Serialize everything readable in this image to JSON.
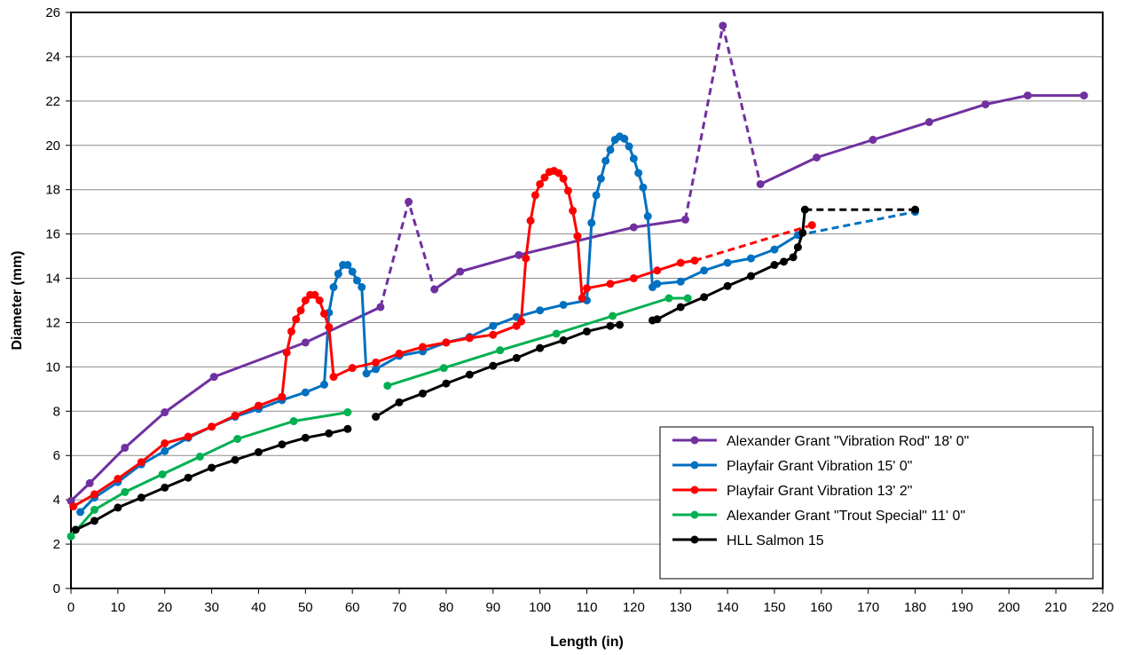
{
  "chart_data": {
    "type": "line",
    "title": "",
    "xlabel": "Length (in)",
    "ylabel": "Diameter (mm)",
    "xlim": [
      0,
      220
    ],
    "ylim": [
      0,
      26
    ],
    "xticks": [
      0,
      10,
      20,
      30,
      40,
      50,
      60,
      70,
      80,
      90,
      100,
      110,
      120,
      130,
      140,
      150,
      160,
      170,
      180,
      190,
      200,
      210,
      220
    ],
    "yticks": [
      0,
      2,
      4,
      6,
      8,
      10,
      12,
      14,
      16,
      18,
      20,
      22,
      24,
      26
    ],
    "grid": "horizontal",
    "legend_position": "bottom-right",
    "series": [
      {
        "name": "Alexander Grant \"Vibration Rod\" 18' 0\"",
        "color": "#7030a0",
        "segments": [
          {
            "style": "solid",
            "points": [
              [
                0,
                3.95
              ],
              [
                4,
                4.75
              ],
              [
                11.5,
                6.35
              ],
              [
                20,
                7.95
              ],
              [
                30.5,
                9.55
              ],
              [
                50,
                11.1
              ],
              [
                66,
                12.7
              ]
            ]
          },
          {
            "style": "dashed",
            "points": [
              [
                66,
                12.7
              ],
              [
                72,
                17.45
              ],
              [
                77.5,
                13.5
              ]
            ]
          },
          {
            "style": "solid",
            "points": [
              [
                77.5,
                13.5
              ],
              [
                83,
                14.3
              ],
              [
                95.5,
                15.05
              ],
              [
                120,
                16.3
              ],
              [
                131,
                16.65
              ]
            ]
          },
          {
            "style": "dashed",
            "points": [
              [
                131,
                16.65
              ],
              [
                139,
                25.4
              ],
              [
                147,
                18.25
              ]
            ]
          },
          {
            "style": "solid",
            "points": [
              [
                147,
                18.25
              ],
              [
                159,
                19.45
              ],
              [
                171,
                20.25
              ],
              [
                183,
                21.05
              ],
              [
                195,
                21.85
              ],
              [
                204,
                22.25
              ],
              [
                216,
                22.25
              ]
            ]
          }
        ]
      },
      {
        "name": "Playfair  Grant Vibration 15' 0\"",
        "color": "#0070c0",
        "segments": [
          {
            "style": "solid",
            "points": [
              [
                2,
                3.45
              ],
              [
                5,
                4.1
              ],
              [
                10,
                4.8
              ],
              [
                15,
                5.6
              ],
              [
                20,
                6.2
              ],
              [
                25,
                6.8
              ],
              [
                30,
                7.3
              ],
              [
                35,
                7.75
              ],
              [
                40,
                8.1
              ],
              [
                45,
                8.5
              ],
              [
                50,
                8.85
              ],
              [
                54,
                9.2
              ],
              [
                55,
                12.45
              ],
              [
                56,
                13.6
              ],
              [
                57,
                14.2
              ],
              [
                58,
                14.6
              ],
              [
                59,
                14.6
              ],
              [
                60,
                14.3
              ],
              [
                61,
                13.9
              ],
              [
                62,
                13.6
              ],
              [
                63,
                9.7
              ],
              [
                65,
                9.9
              ],
              [
                70,
                10.5
              ],
              [
                75,
                10.7
              ],
              [
                80,
                11.1
              ],
              [
                85,
                11.35
              ],
              [
                90,
                11.85
              ],
              [
                95,
                12.25
              ],
              [
                100,
                12.55
              ],
              [
                105,
                12.8
              ],
              [
                110,
                13.0
              ],
              [
                111,
                16.5
              ],
              [
                112,
                17.75
              ],
              [
                113,
                18.5
              ],
              [
                114,
                19.3
              ],
              [
                115,
                19.8
              ],
              [
                116,
                20.25
              ],
              [
                117,
                20.4
              ],
              [
                118,
                20.3
              ],
              [
                119,
                19.95
              ],
              [
                120,
                19.4
              ],
              [
                121,
                18.75
              ],
              [
                122,
                18.1
              ],
              [
                123,
                16.8
              ],
              [
                124,
                13.6
              ],
              [
                125,
                13.75
              ],
              [
                130,
                13.85
              ],
              [
                135,
                14.35
              ],
              [
                140,
                14.7
              ],
              [
                145,
                14.9
              ],
              [
                150,
                15.3
              ],
              [
                155,
                15.95
              ]
            ]
          },
          {
            "style": "dashed",
            "points": [
              [
                155,
                15.95
              ],
              [
                180,
                17.0
              ]
            ]
          }
        ]
      },
      {
        "name": "Playfair  Grant Vibration 13' 2\"",
        "color": "#ff0000",
        "segments": [
          {
            "style": "solid",
            "points": [
              [
                0.5,
                3.7
              ],
              [
                5,
                4.25
              ],
              [
                10,
                4.95
              ],
              [
                15,
                5.7
              ],
              [
                20,
                6.55
              ],
              [
                25,
                6.85
              ],
              [
                30,
                7.3
              ],
              [
                35,
                7.8
              ],
              [
                40,
                8.25
              ],
              [
                45,
                8.65
              ],
              [
                46,
                10.65
              ],
              [
                47,
                11.6
              ],
              [
                48,
                12.15
              ],
              [
                49,
                12.55
              ],
              [
                50,
                13.0
              ],
              [
                51,
                13.25
              ],
              [
                52,
                13.25
              ],
              [
                53,
                13.0
              ],
              [
                54,
                12.4
              ],
              [
                55,
                11.8
              ],
              [
                56,
                9.55
              ],
              [
                60,
                9.95
              ],
              [
                65,
                10.2
              ],
              [
                70,
                10.6
              ],
              [
                75,
                10.9
              ],
              [
                80,
                11.1
              ],
              [
                85,
                11.3
              ],
              [
                90,
                11.45
              ],
              [
                95,
                11.85
              ],
              [
                96,
                12.05
              ],
              [
                97,
                14.9
              ],
              [
                98,
                16.6
              ],
              [
                99,
                17.75
              ],
              [
                100,
                18.25
              ],
              [
                101,
                18.55
              ],
              [
                102,
                18.8
              ],
              [
                103,
                18.85
              ],
              [
                104,
                18.75
              ],
              [
                105,
                18.5
              ],
              [
                106,
                17.95
              ],
              [
                107,
                17.05
              ],
              [
                108,
                15.9
              ],
              [
                109,
                13.1
              ],
              [
                110,
                13.55
              ],
              [
                115,
                13.75
              ],
              [
                120,
                14.0
              ],
              [
                125,
                14.35
              ],
              [
                130,
                14.7
              ],
              [
                133,
                14.8
              ]
            ]
          },
          {
            "style": "dashed",
            "points": [
              [
                133,
                14.8
              ],
              [
                158,
                16.4
              ]
            ]
          }
        ]
      },
      {
        "name": "Alexander Grant \"Trout Special\" 11' 0\"",
        "color": "#00b050",
        "segments": [
          {
            "style": "solid",
            "points": [
              [
                0,
                2.35
              ],
              [
                5,
                3.55
              ],
              [
                11.5,
                4.35
              ],
              [
                19.5,
                5.15
              ],
              [
                27.5,
                5.95
              ],
              [
                35.5,
                6.75
              ],
              [
                47.5,
                7.55
              ],
              [
                59,
                7.95
              ]
            ]
          },
          {
            "style": "solid",
            "points": [
              [
                67.5,
                9.15
              ],
              [
                79.5,
                9.95
              ],
              [
                91.5,
                10.75
              ],
              [
                103.5,
                11.5
              ],
              [
                115.5,
                12.3
              ],
              [
                127.5,
                13.1
              ],
              [
                131.5,
                13.1
              ]
            ]
          }
        ]
      },
      {
        "name": "HLL Salmon 15",
        "color": "#000000",
        "segments": [
          {
            "style": "solid",
            "points": [
              [
                1,
                2.65
              ],
              [
                5,
                3.05
              ],
              [
                10,
                3.65
              ],
              [
                15,
                4.1
              ],
              [
                20,
                4.55
              ],
              [
                25,
                5.0
              ],
              [
                30,
                5.45
              ],
              [
                35,
                5.8
              ],
              [
                40,
                6.15
              ],
              [
                45,
                6.5
              ],
              [
                50,
                6.8
              ],
              [
                55,
                7.0
              ],
              [
                59,
                7.2
              ]
            ]
          },
          {
            "style": "solid",
            "points": [
              [
                65,
                7.75
              ],
              [
                70,
                8.4
              ],
              [
                75,
                8.8
              ],
              [
                80,
                9.25
              ],
              [
                85,
                9.65
              ],
              [
                90,
                10.05
              ],
              [
                95,
                10.4
              ],
              [
                100,
                10.85
              ],
              [
                105,
                11.2
              ],
              [
                110,
                11.6
              ],
              [
                115,
                11.85
              ],
              [
                117,
                11.9
              ]
            ]
          },
          {
            "style": "solid",
            "points": [
              [
                124,
                12.1
              ],
              [
                125,
                12.15
              ],
              [
                130,
                12.7
              ],
              [
                135,
                13.15
              ],
              [
                140,
                13.65
              ],
              [
                145,
                14.1
              ],
              [
                150,
                14.6
              ],
              [
                152,
                14.75
              ],
              [
                154,
                14.95
              ],
              [
                155,
                15.4
              ],
              [
                156,
                16.05
              ],
              [
                156.5,
                17.1
              ]
            ]
          },
          {
            "style": "dashed",
            "points": [
              [
                156.5,
                17.1
              ],
              [
                180,
                17.1
              ]
            ]
          }
        ]
      }
    ]
  }
}
